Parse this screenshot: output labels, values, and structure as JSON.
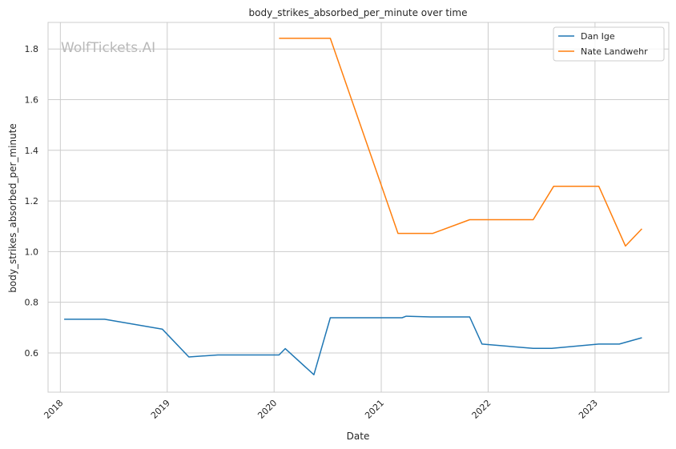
{
  "chart_data": {
    "type": "line",
    "title": "body_strikes_absorbed_per_minute over time",
    "xlabel": "Date",
    "ylabel": "body_strikes_absorbed_per_minute",
    "watermark": "WolfTickets.AI",
    "x_ticks": [
      "2018",
      "2019",
      "2020",
      "2021",
      "2022",
      "2023"
    ],
    "y_ticks": [
      "0.6",
      "0.8",
      "1.0",
      "1.2",
      "1.4",
      "1.6",
      "1.8"
    ],
    "xlim": [
      "2017-11-20",
      "2023-09-10"
    ],
    "ylim": [
      0.445,
      1.905
    ],
    "grid": true,
    "legend_position": "upper-right",
    "series": [
      {
        "name": "Dan Ige",
        "color": "#1f77b4",
        "points": [
          [
            "2018-01-14",
            0.733
          ],
          [
            "2018-06-01",
            0.733
          ],
          [
            "2018-12-15",
            0.694
          ],
          [
            "2019-03-16",
            0.584
          ],
          [
            "2019-06-23",
            0.592
          ],
          [
            "2020-01-18",
            0.592
          ],
          [
            "2020-02-08",
            0.617
          ],
          [
            "2020-05-16",
            0.514
          ],
          [
            "2020-07-11",
            0.739
          ],
          [
            "2021-03-13",
            0.739
          ],
          [
            "2021-03-27",
            0.745
          ],
          [
            "2021-06-19",
            0.742
          ],
          [
            "2021-10-30",
            0.742
          ],
          [
            "2021-12-11",
            0.635
          ],
          [
            "2022-06-04",
            0.618
          ],
          [
            "2022-08-06",
            0.618
          ],
          [
            "2023-01-14",
            0.635
          ],
          [
            "2023-03-25",
            0.635
          ],
          [
            "2023-06-10",
            0.66
          ]
        ]
      },
      {
        "name": "Nate Landwehr",
        "color": "#ff7f0e",
        "points": [
          [
            "2020-01-18",
            1.842
          ],
          [
            "2020-07-11",
            1.842
          ],
          [
            "2021-02-27",
            1.072
          ],
          [
            "2021-06-26",
            1.072
          ],
          [
            "2021-10-30",
            1.126
          ],
          [
            "2022-06-04",
            1.126
          ],
          [
            "2022-08-13",
            1.258
          ],
          [
            "2023-01-14",
            1.258
          ],
          [
            "2023-04-15",
            1.022
          ],
          [
            "2023-06-10",
            1.09
          ]
        ]
      }
    ]
  }
}
